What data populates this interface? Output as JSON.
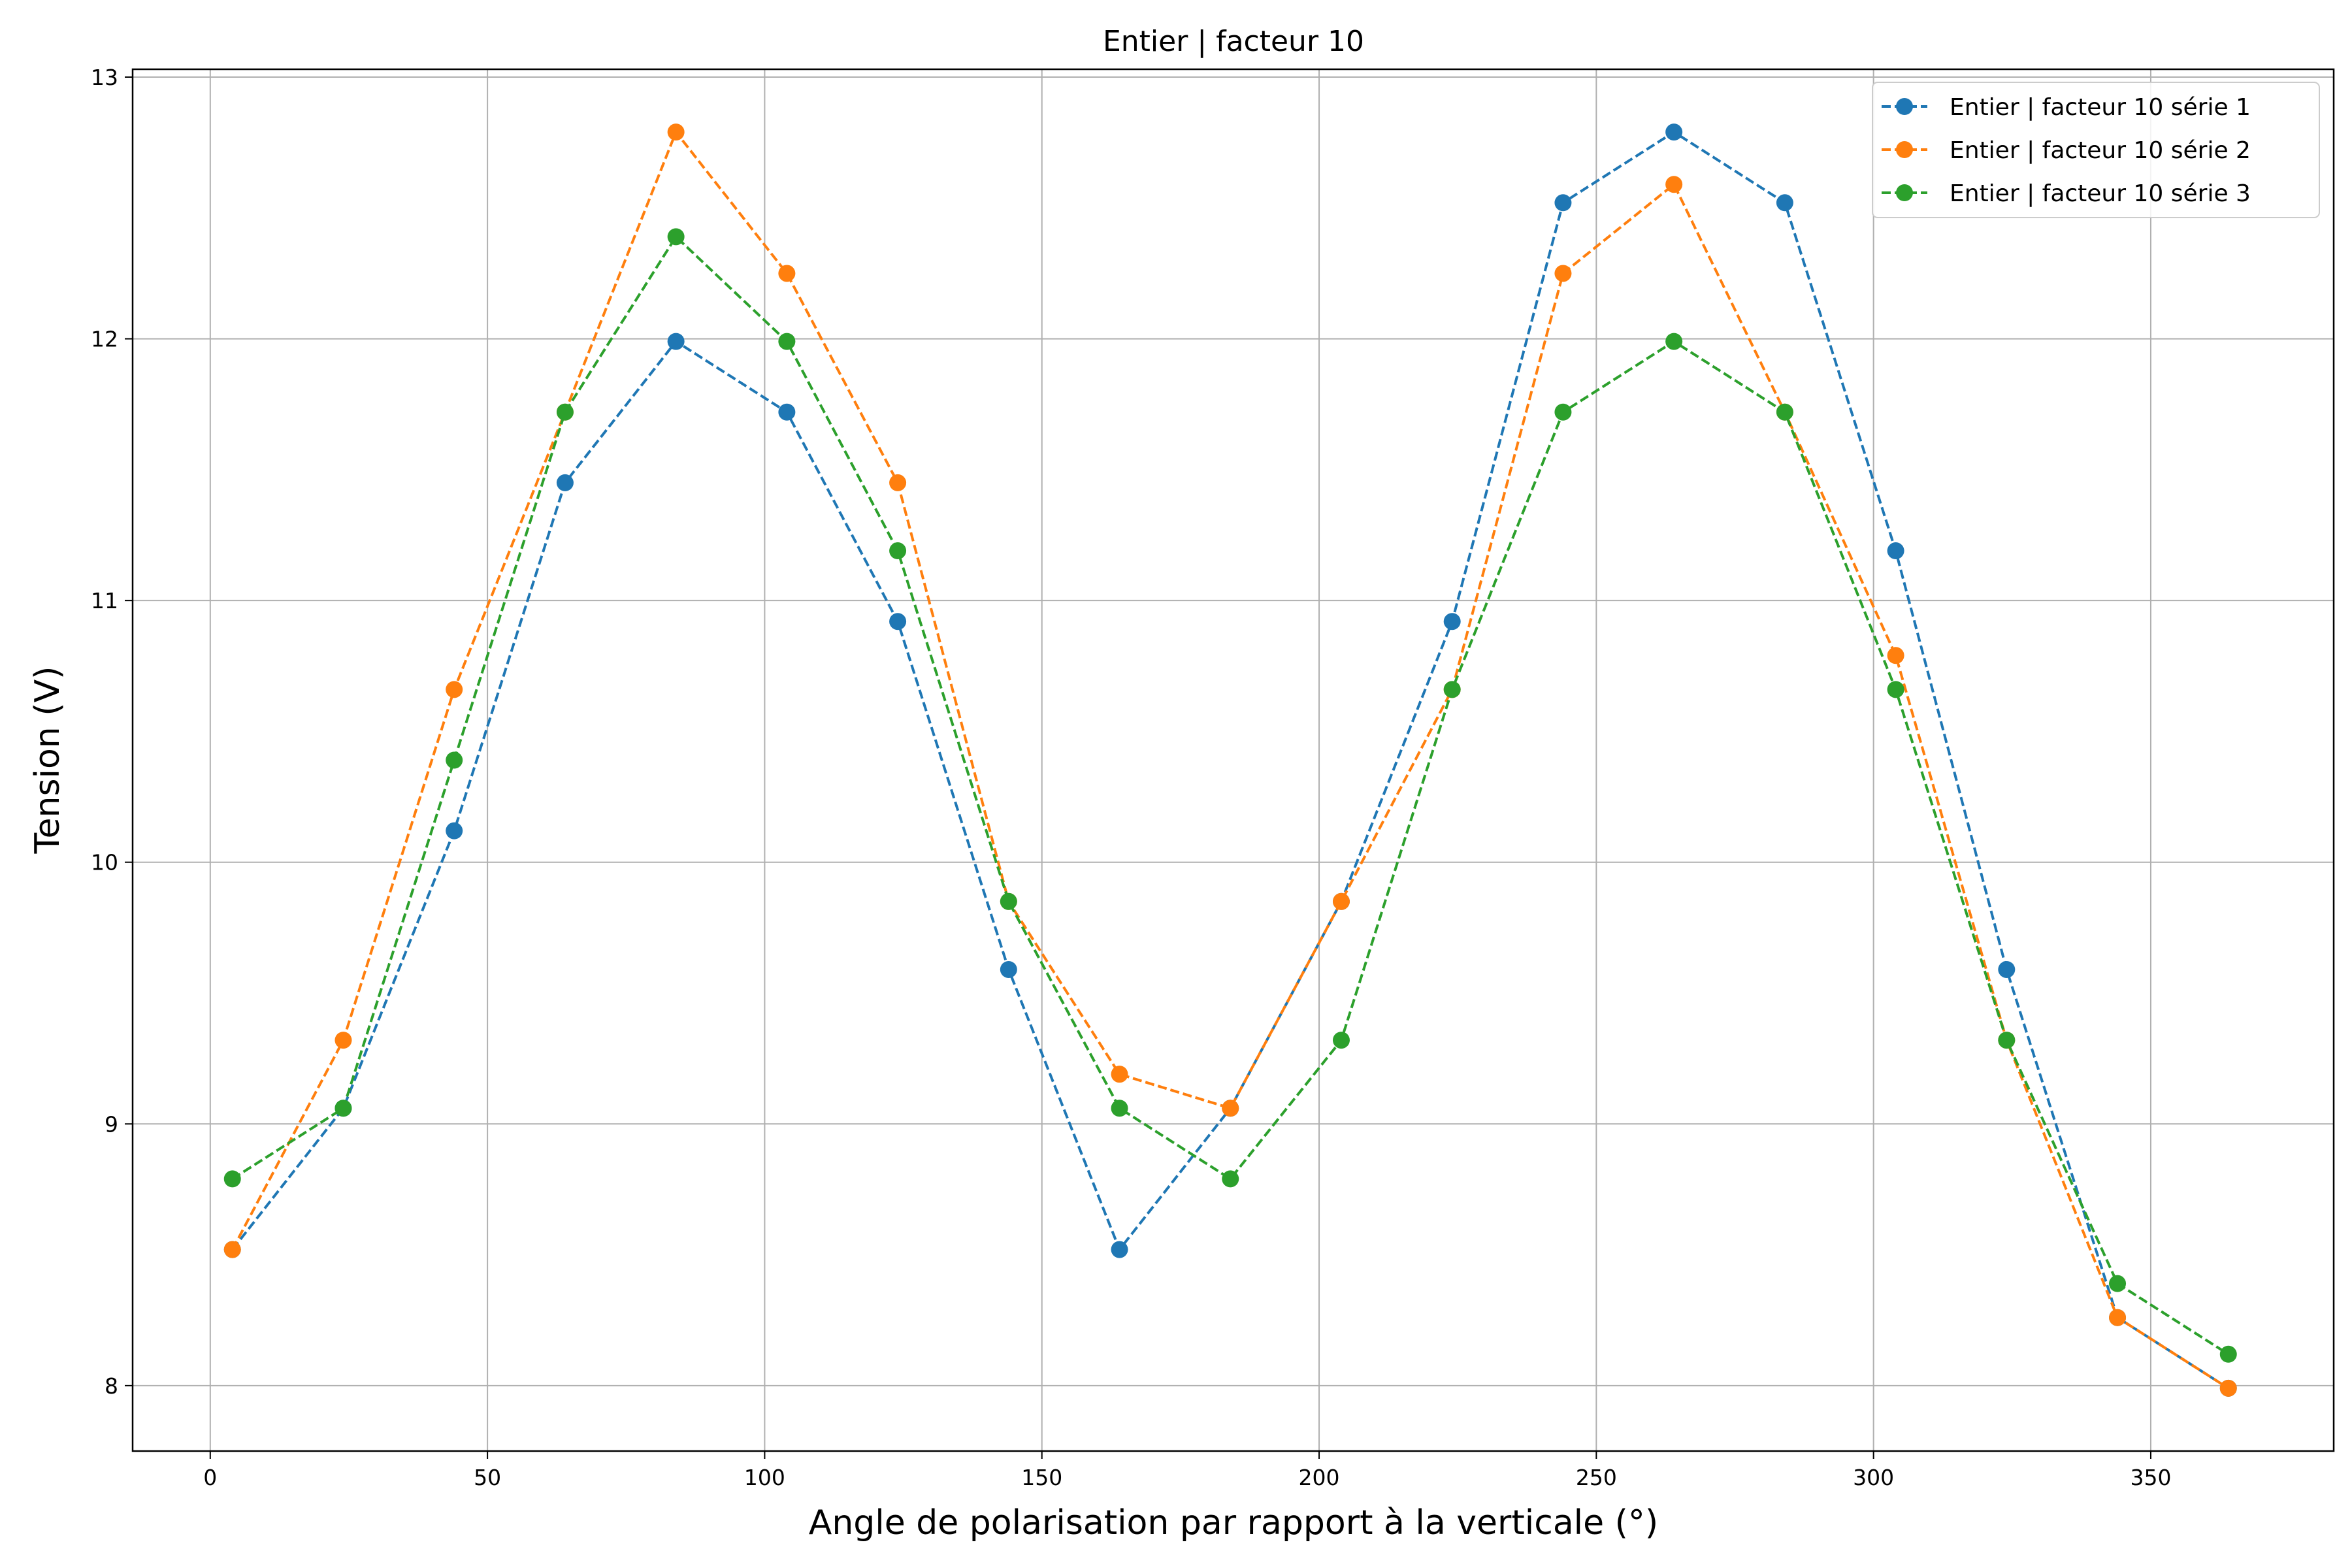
{
  "chart_data": {
    "type": "line",
    "title": "Entier | facteur 10",
    "xlabel": "Angle de polarisation par rapport à la verticale (°)",
    "ylabel": "Tension (V)",
    "xlim": [
      -14,
      383
    ],
    "ylim": [
      7.75,
      13.03
    ],
    "xticks": [
      0,
      50,
      100,
      150,
      200,
      250,
      300,
      350
    ],
    "yticks": [
      8,
      9,
      10,
      11,
      12,
      13
    ],
    "grid": true,
    "legend_position": "top-right",
    "line_style": "dashed",
    "marker": "circle",
    "x": [
      4,
      24,
      44,
      64,
      84,
      104,
      124,
      144,
      164,
      184,
      204,
      224,
      244,
      264,
      284,
      304,
      324,
      344,
      364
    ],
    "series": [
      {
        "name": "Entier | facteur 10 série 1",
        "color": "#1f77b4",
        "values": [
          8.52,
          9.06,
          10.12,
          11.45,
          11.99,
          11.72,
          10.92,
          9.59,
          8.52,
          9.06,
          9.85,
          10.92,
          12.52,
          12.79,
          12.52,
          11.19,
          9.59,
          8.26,
          7.99
        ]
      },
      {
        "name": "Entier | facteur 10 série 2",
        "color": "#ff7f0e",
        "values": [
          8.52,
          9.32,
          10.66,
          11.72,
          12.79,
          12.25,
          11.45,
          9.85,
          9.19,
          9.06,
          9.85,
          10.66,
          12.25,
          12.59,
          11.72,
          10.79,
          9.32,
          8.26,
          7.99
        ]
      },
      {
        "name": "Entier | facteur 10 série 3",
        "color": "#2ca02c",
        "values": [
          8.79,
          9.06,
          10.39,
          11.72,
          12.39,
          11.99,
          11.19,
          9.85,
          9.06,
          8.79,
          9.32,
          10.66,
          11.72,
          11.99,
          11.72,
          10.66,
          9.32,
          8.39,
          8.12
        ]
      }
    ]
  }
}
